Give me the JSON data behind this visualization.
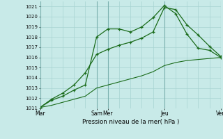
{
  "xlabel": "Pression niveau de la mer( hPa )",
  "bg_color": "#c8eae8",
  "grid_color": "#a8d4d2",
  "line_color": "#1a6b1a",
  "vline_color": "#7ab0ae",
  "ylim": [
    1011,
    1021.5
  ],
  "yticks": [
    1011,
    1012,
    1013,
    1014,
    1015,
    1016,
    1017,
    1018,
    1019,
    1020,
    1021
  ],
  "xlim": [
    0,
    16
  ],
  "all_x": [
    0,
    1,
    2,
    3,
    4,
    5,
    6,
    7,
    8,
    9,
    10,
    11,
    12,
    13,
    14,
    15,
    16
  ],
  "vlines_x": [
    0,
    5,
    6,
    11,
    16
  ],
  "xtick_positions": [
    0,
    5,
    6,
    11,
    16
  ],
  "xtick_labels": [
    "Mar",
    "Sam",
    "Mer",
    "Jeu",
    "Ven"
  ],
  "series1_x": [
    0,
    1,
    2,
    3,
    4,
    5,
    6,
    7,
    8,
    9,
    10,
    11,
    12,
    13,
    14,
    15,
    16
  ],
  "series1_y": [
    1011.1,
    1011.8,
    1012.2,
    1012.8,
    1013.3,
    1018.0,
    1018.8,
    1018.8,
    1018.5,
    1019.0,
    1019.9,
    1021.1,
    1020.3,
    1018.3,
    1016.9,
    1016.7,
    1016.0
  ],
  "series2_x": [
    0,
    1,
    2,
    3,
    4,
    5,
    6,
    7,
    8,
    9,
    10,
    11,
    12,
    13,
    14,
    15,
    16
  ],
  "series2_y": [
    1011.1,
    1011.9,
    1012.5,
    1013.3,
    1014.5,
    1016.3,
    1016.8,
    1017.2,
    1017.5,
    1017.9,
    1018.5,
    1020.9,
    1020.7,
    1019.2,
    1018.2,
    1017.1,
    1016.1
  ],
  "series3_x": [
    0,
    1,
    2,
    3,
    4,
    5,
    6,
    7,
    8,
    9,
    10,
    11,
    12,
    13,
    14,
    15,
    16
  ],
  "series3_y": [
    1011.1,
    1011.3,
    1011.6,
    1011.9,
    1012.2,
    1013.0,
    1013.3,
    1013.6,
    1013.9,
    1014.2,
    1014.6,
    1015.2,
    1015.5,
    1015.7,
    1015.8,
    1015.9,
    1016.0
  ]
}
